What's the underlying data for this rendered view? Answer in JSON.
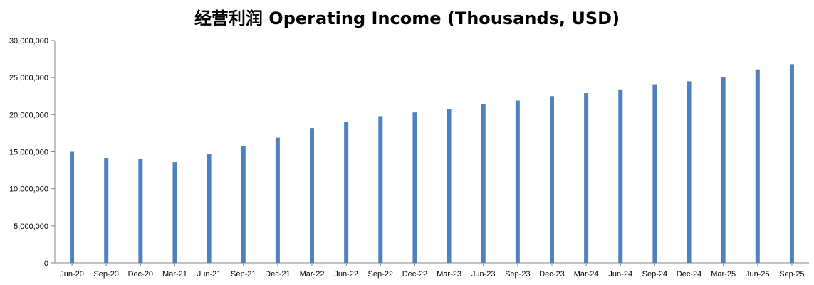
{
  "chart_data": {
    "type": "bar",
    "title": "经营利润 Operating Income (Thousands, USD)",
    "xlabel": "",
    "ylabel": "",
    "ylim": [
      0,
      30000000
    ],
    "yticks": [
      "0",
      "5,000,000",
      "10,000,000",
      "15,000,000",
      "20,000,000",
      "25,000,000",
      "30,000,000"
    ],
    "grid": false,
    "legend": "none",
    "bar_color": "#4f81bd",
    "categories": [
      "Jun-20",
      "Sep-20",
      "Dec-20",
      "Mar-21",
      "Jun-21",
      "Sep-21",
      "Dec-21",
      "Mar-22",
      "Jun-22",
      "Sep-22",
      "Dec-22",
      "Mar-23",
      "Jun-23",
      "Sep-23",
      "Dec-23",
      "Mar-24",
      "Jun-24",
      "Sep-24",
      "Dec-24",
      "Mar-25",
      "Jun-25",
      "Sep-25"
    ],
    "values": [
      15000000,
      14100000,
      14000000,
      13600000,
      14700000,
      15800000,
      16900000,
      18200000,
      19000000,
      19800000,
      20300000,
      20700000,
      21400000,
      21900000,
      22500000,
      22900000,
      23400000,
      24100000,
      24500000,
      25100000,
      26100000,
      26800000
    ]
  }
}
